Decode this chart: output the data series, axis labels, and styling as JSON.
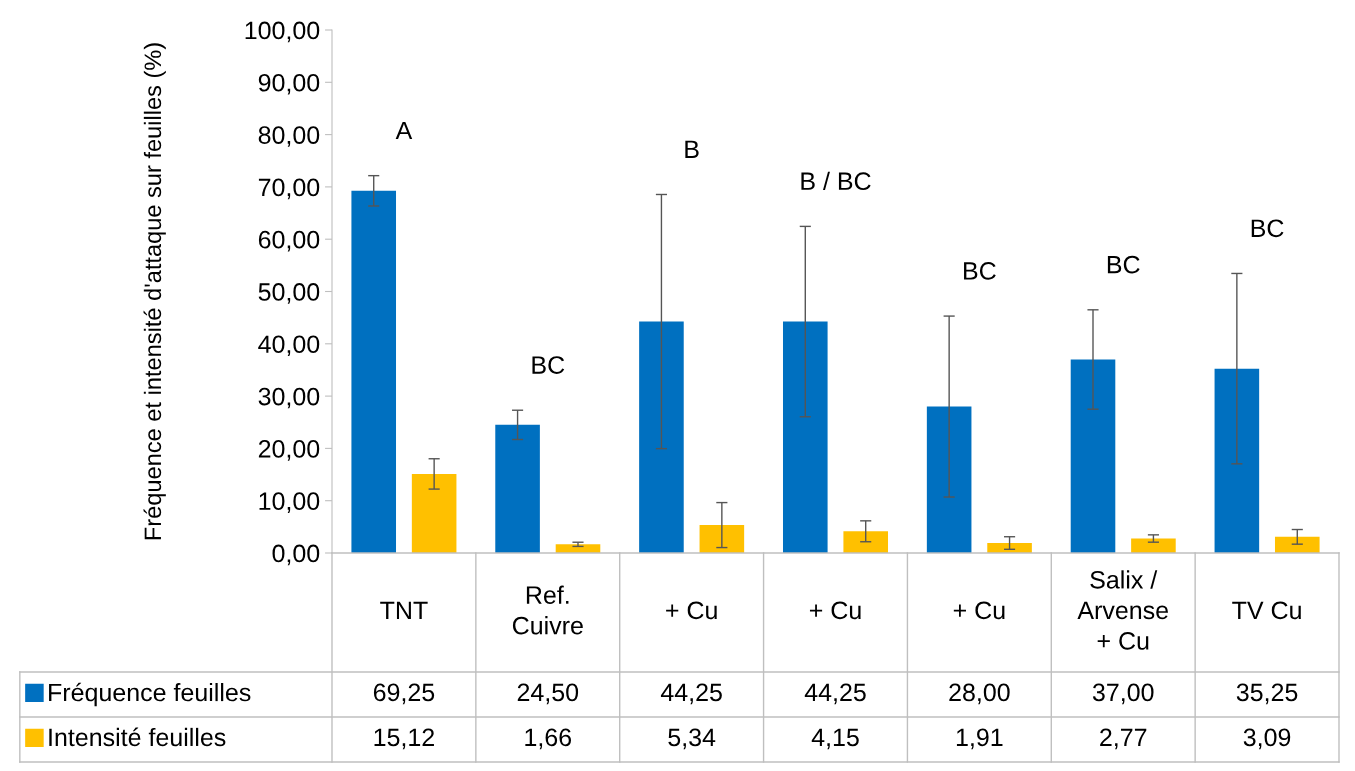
{
  "chart_data": {
    "type": "bar",
    "ylabel": "Fréquence et intensité d'attaque sur feuilles (%)",
    "categories": [
      "TNT",
      "Ref. Cuivre",
      "+ Cu",
      "+ Cu",
      "+ Cu",
      "Salix / Arvense + Cu",
      "TV Cu"
    ],
    "series": [
      {
        "name": "Fréquence feuilles",
        "color": "#0070c0",
        "values": [
          69.25,
          24.5,
          44.25,
          44.25,
          28.0,
          37.0,
          35.25
        ],
        "errors": [
          2.9,
          2.8,
          24.3,
          18.2,
          17.3,
          9.5,
          18.2
        ],
        "value_labels": [
          "69,25",
          "24,50",
          "44,25",
          "44,25",
          "28,00",
          "37,00",
          "35,25"
        ]
      },
      {
        "name": "Intensité feuilles",
        "color": "#ffc000",
        "values": [
          15.12,
          1.66,
          5.34,
          4.15,
          1.91,
          2.77,
          3.09
        ],
        "errors": [
          2.9,
          0.4,
          4.3,
          2.0,
          1.2,
          0.7,
          1.4
        ],
        "value_labels": [
          "15,12",
          "1,66",
          "5,34",
          "4,15",
          "1,91",
          "2,77",
          "3,09"
        ]
      }
    ],
    "ylim": [
      0,
      100
    ],
    "yticks": [
      {
        "value": 0,
        "label": "0,00"
      },
      {
        "value": 10,
        "label": "10,00"
      },
      {
        "value": 20,
        "label": "20,00"
      },
      {
        "value": 30,
        "label": "30,00"
      },
      {
        "value": 40,
        "label": "40,00"
      },
      {
        "value": 50,
        "label": "50,00"
      },
      {
        "value": 60,
        "label": "60,00"
      },
      {
        "value": 70,
        "label": "70,00"
      },
      {
        "value": 80,
        "label": "80,00"
      },
      {
        "value": 90,
        "label": "90,00"
      },
      {
        "value": 100,
        "label": "100,00"
      }
    ],
    "annotations": [
      "A",
      "BC",
      "B",
      "B / BC",
      "BC",
      "BC",
      "BC"
    ],
    "grid": false,
    "legend": "bottom left"
  }
}
